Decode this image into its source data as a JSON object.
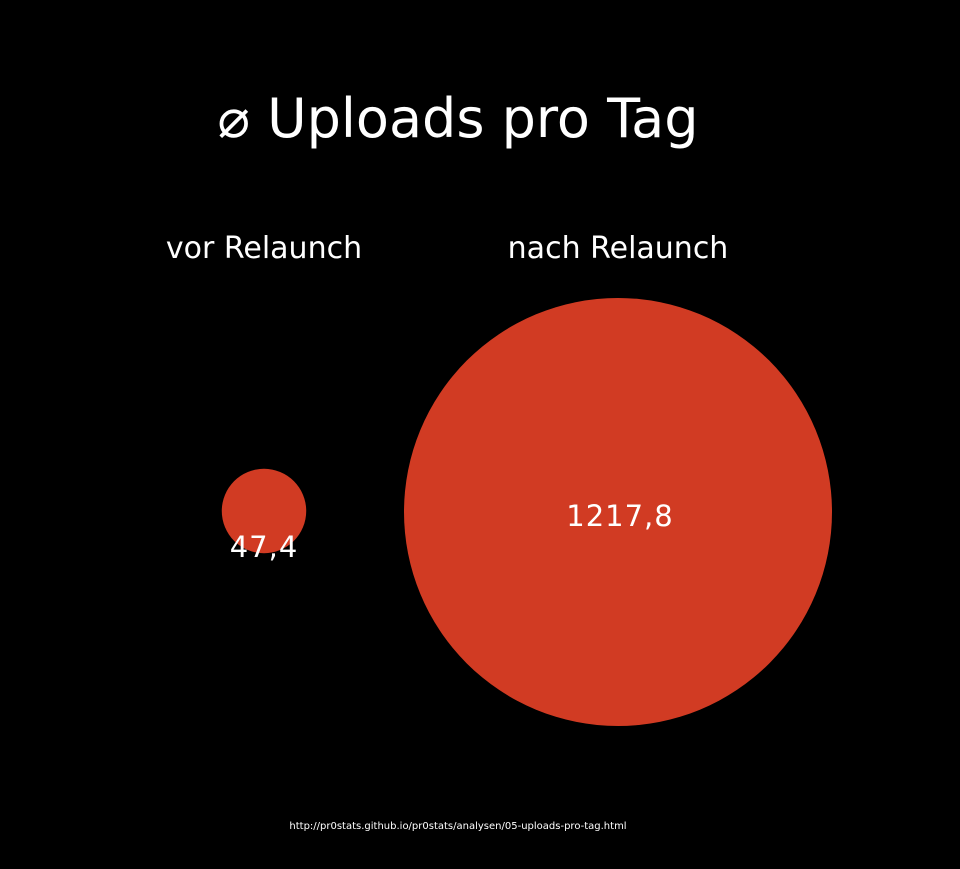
{
  "chart_data": {
    "type": "bubble",
    "title": "⌀ Uploads pro Tag",
    "categories": [
      "vor Relaunch",
      "nach Relaunch"
    ],
    "values": [
      47.4,
      1217.8
    ],
    "value_labels": [
      "47,4",
      "1217,8"
    ],
    "source": "http://pr0stats.github.io/pr0stats/analysen/05-uploads-pro-tag.html",
    "colors": {
      "background": "#000000",
      "bubble": "#d13b23",
      "text": "#ffffff"
    }
  }
}
